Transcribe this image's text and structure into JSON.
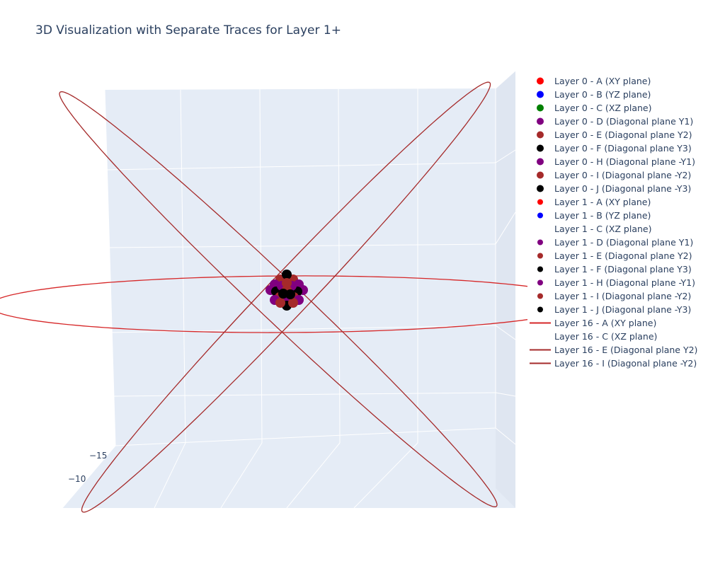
{
  "chart_data": {
    "type": "scatter3d",
    "title": "3D Visualization with Separate Traces for Layer 1+",
    "visible_axis_ticks": [
      "−15",
      "−10"
    ],
    "grid": true,
    "legend_position": "right",
    "center_cluster": {
      "description_values": [
        0,
        0,
        0
      ]
    },
    "traces": [
      {
        "name": "Layer 0 - A (XY plane)",
        "color": "#ff0000",
        "mode": "markers",
        "marker": "large"
      },
      {
        "name": "Layer 0 - B (YZ plane)",
        "color": "#0000ff",
        "mode": "markers",
        "marker": "large"
      },
      {
        "name": "Layer 0 - C (XZ plane)",
        "color": "#008000",
        "mode": "markers",
        "marker": "large"
      },
      {
        "name": "Layer 0 - D (Diagonal plane Y1)",
        "color": "#800080",
        "mode": "markers",
        "marker": "large"
      },
      {
        "name": "Layer 0 - E (Diagonal plane Y2)",
        "color": "#a52a2a",
        "mode": "markers",
        "marker": "large"
      },
      {
        "name": "Layer 0 - F (Diagonal plane Y3)",
        "color": "#000000",
        "mode": "markers",
        "marker": "large"
      },
      {
        "name": "Layer 0 - H (Diagonal plane -Y1)",
        "color": "#800080",
        "mode": "markers",
        "marker": "large"
      },
      {
        "name": "Layer 0 - I (Diagonal plane -Y2)",
        "color": "#a52a2a",
        "mode": "markers",
        "marker": "large"
      },
      {
        "name": "Layer 0 - J (Diagonal plane -Y3)",
        "color": "#000000",
        "mode": "markers",
        "marker": "large"
      },
      {
        "name": "Layer 1 - A (XY plane)",
        "color": "#ff0000",
        "mode": "markers",
        "marker": "small"
      },
      {
        "name": "Layer 1 - B (YZ plane)",
        "color": "#0000ff",
        "mode": "markers",
        "marker": "small"
      },
      {
        "name": "Layer 1 - C (XZ plane)",
        "color": "#008000",
        "mode": "none",
        "marker": "none"
      },
      {
        "name": "Layer 1 - D (Diagonal plane Y1)",
        "color": "#800080",
        "mode": "markers",
        "marker": "small"
      },
      {
        "name": "Layer 1 - E (Diagonal plane Y2)",
        "color": "#a52a2a",
        "mode": "markers",
        "marker": "small"
      },
      {
        "name": "Layer 1 - F (Diagonal plane Y3)",
        "color": "#000000",
        "mode": "markers",
        "marker": "small"
      },
      {
        "name": "Layer 1 - H (Diagonal plane -Y1)",
        "color": "#800080",
        "mode": "markers",
        "marker": "small"
      },
      {
        "name": "Layer 1 - I (Diagonal plane -Y2)",
        "color": "#a52a2a",
        "mode": "markers",
        "marker": "small"
      },
      {
        "name": "Layer 1 - J (Diagonal plane -Y3)",
        "color": "#000000",
        "mode": "markers",
        "marker": "small"
      },
      {
        "name": "Layer 16 - A (XY plane)",
        "color": "#ff0000",
        "mode": "lines",
        "marker": "line"
      },
      {
        "name": "Layer 16 - C (XZ plane)",
        "color": "#008000",
        "mode": "none",
        "marker": "none"
      },
      {
        "name": "Layer 16 - E (Diagonal plane Y2)",
        "color": "#a52a2a",
        "mode": "lines",
        "marker": "line"
      },
      {
        "name": "Layer 16 - I (Diagonal plane -Y2)",
        "color": "#a52a2a",
        "mode": "lines",
        "marker": "line"
      }
    ]
  }
}
